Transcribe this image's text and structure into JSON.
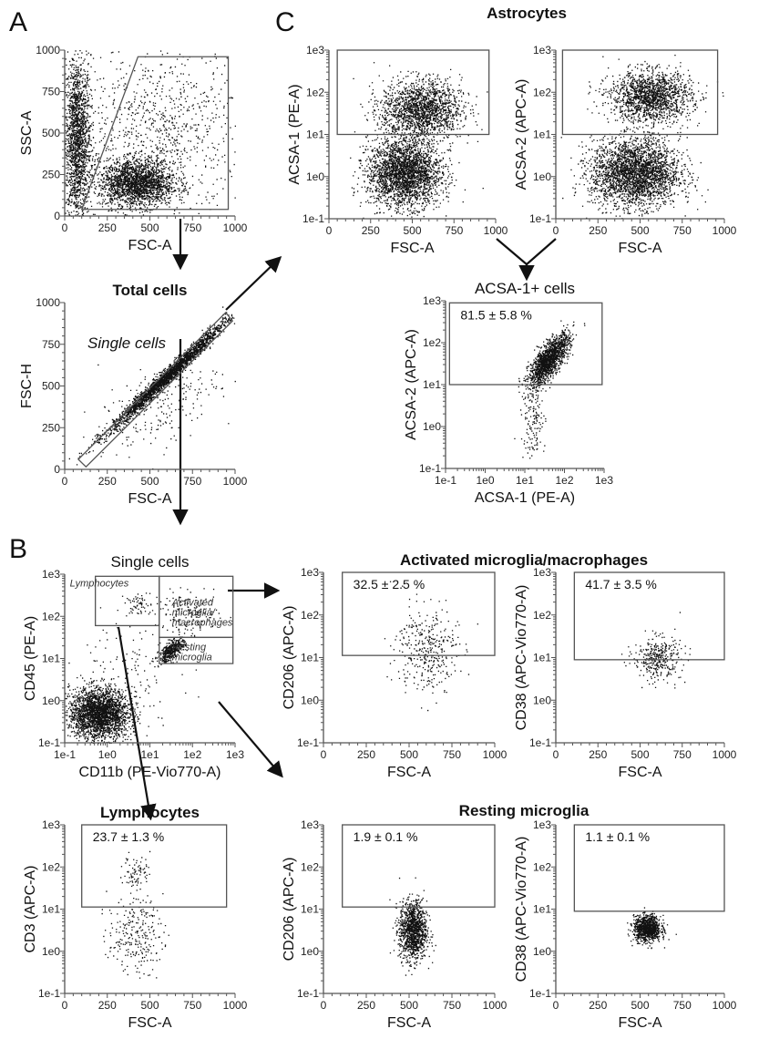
{
  "panel_letters": [
    "A",
    "B",
    "C"
  ],
  "group_titles": {
    "astrocytes": "Astrocytes",
    "activated": "Activated microglia/macrophages",
    "resting": "Resting microglia"
  },
  "chart_data": [
    {
      "id": "A1",
      "type": "scatter",
      "title": "",
      "xlabel": "FSC-A",
      "ylabel": "SSC-A",
      "xscale": "linear",
      "yscale": "linear",
      "xlim": [
        0,
        1000
      ],
      "ylim": [
        0,
        1000
      ],
      "xticks": [
        "0",
        "250",
        "500",
        "750",
        "1000"
      ],
      "yticks": [
        "0",
        "250",
        "500",
        "750",
        "1000"
      ],
      "gates": [
        {
          "type": "polygon",
          "points": [
            [
              100,
              40
            ],
            [
              430,
              960
            ],
            [
              960,
              960
            ],
            [
              960,
              40
            ]
          ]
        }
      ],
      "clusters": [
        {
          "mx": 70,
          "sx": 40,
          "my": 450,
          "sy": 260,
          "n": 1800
        },
        {
          "mx": 420,
          "sx": 110,
          "my": 200,
          "sy": 70,
          "n": 2000
        },
        {
          "mx": 550,
          "sx": 250,
          "my": 520,
          "sy": 250,
          "n": 900
        }
      ]
    },
    {
      "id": "A2",
      "type": "scatter",
      "title": "Total cells",
      "title_bold": true,
      "xlabel": "FSC-A",
      "ylabel": "FSC-H",
      "xscale": "linear",
      "yscale": "linear",
      "xlim": [
        0,
        1000
      ],
      "ylim": [
        0,
        1000
      ],
      "xticks": [
        "0",
        "250",
        "500",
        "750",
        "1000"
      ],
      "yticks": [
        "0",
        "250",
        "500",
        "750",
        "1000"
      ],
      "annotation": "Single cells",
      "gates": [
        {
          "type": "polygon",
          "points": [
            [
              80,
              60
            ],
            [
              125,
              15
            ],
            [
              985,
              890
            ],
            [
              945,
              940
            ]
          ]
        }
      ],
      "clusters": [
        {
          "mx": 600,
          "sx": 170,
          "my": 560,
          "sy": 25,
          "slope": 0.95,
          "n": 2500
        },
        {
          "mx": 550,
          "sx": 180,
          "my": 380,
          "sy": 120,
          "slope": 0.5,
          "n": 220
        }
      ]
    },
    {
      "id": "B1",
      "type": "scatter",
      "title": "Single cells",
      "xlabel": "CD11b (PE-Vio770-A)",
      "ylabel": "CD45 (PE-A)",
      "xscale": "log",
      "yscale": "log",
      "xlim": [
        -1,
        3
      ],
      "ylim": [
        -1,
        3
      ],
      "xticks": [
        "1e-1",
        "1e0",
        "1e1",
        "1e2",
        "1e3"
      ],
      "yticks": [
        "1e-1",
        "1e0",
        "1e1",
        "1e2",
        "1e3"
      ],
      "gates": [
        {
          "type": "rect",
          "x": [
            -0.28,
            1.22
          ],
          "y": [
            1.78,
            2.95
          ],
          "label": "Lymphocytes"
        },
        {
          "type": "rect",
          "x": [
            1.22,
            2.95
          ],
          "y": [
            1.5,
            2.95
          ],
          "label": "Activated microglia/ macrophages"
        },
        {
          "type": "rect",
          "x": [
            1.22,
            2.95
          ],
          "y": [
            0.88,
            1.5
          ],
          "label": "Resting microglia"
        }
      ],
      "clusters": [
        {
          "mx": -0.2,
          "sx": 0.35,
          "my": -0.3,
          "sy": 0.3,
          "n": 2500
        },
        {
          "mx": 1.5,
          "sx": 0.15,
          "my": 1.2,
          "sy": 0.1,
          "slope": 0.6,
          "n": 420
        },
        {
          "mx": 1.9,
          "sx": 0.4,
          "my": 2.05,
          "sy": 0.25,
          "n": 160
        },
        {
          "mx": 0.7,
          "sx": 0.15,
          "my": 2.3,
          "sy": 0.15,
          "n": 60
        },
        {
          "mx": 0.5,
          "sx": 0.6,
          "my": 0.8,
          "sy": 0.6,
          "n": 120
        }
      ]
    },
    {
      "id": "C1",
      "type": "scatter",
      "title": "",
      "xlabel": "FSC-A",
      "ylabel": "ACSA-1 (PE-A)",
      "xscale": "linear",
      "yscale": "log",
      "xlim": [
        0,
        1000
      ],
      "ylim": [
        -1,
        3
      ],
      "xticks": [
        "0",
        "250",
        "500",
        "750",
        "1000"
      ],
      "yticks": [
        "1e-1",
        "1e0",
        "1e1",
        "1e2",
        "1e3"
      ],
      "gates": [
        {
          "type": "rect",
          "x": [
            50,
            960
          ],
          "y": [
            1,
            3
          ]
        }
      ],
      "clusters": [
        {
          "mx": 550,
          "sx": 120,
          "my": 1.6,
          "sy": 0.35,
          "n": 1700
        },
        {
          "mx": 450,
          "sx": 110,
          "my": 0.1,
          "sy": 0.4,
          "n": 2600
        }
      ]
    },
    {
      "id": "C2",
      "type": "scatter",
      "title": "",
      "xlabel": "FSC-A",
      "ylabel": "ACSA-2 (APC-A)",
      "xscale": "linear",
      "yscale": "log",
      "xlim": [
        0,
        1000
      ],
      "ylim": [
        -1,
        3
      ],
      "xticks": [
        "0",
        "250",
        "500",
        "750",
        "1000"
      ],
      "yticks": [
        "1e-1",
        "1e0",
        "1e1",
        "1e2",
        "1e3"
      ],
      "gates": [
        {
          "type": "rect",
          "x": [
            40,
            960
          ],
          "y": [
            1,
            3
          ]
        }
      ],
      "clusters": [
        {
          "mx": 560,
          "sx": 120,
          "my": 1.9,
          "sy": 0.3,
          "n": 1600
        },
        {
          "mx": 470,
          "sx": 130,
          "my": 0.1,
          "sy": 0.4,
          "n": 2800
        }
      ]
    },
    {
      "id": "C3",
      "type": "scatter",
      "title": "ACSA-1+ cells",
      "xlabel": "ACSA-1 (PE-A)",
      "ylabel": "ACSA-2 (APC-A)",
      "xscale": "log",
      "yscale": "log",
      "xlim": [
        -1,
        3
      ],
      "ylim": [
        -1,
        3
      ],
      "xticks": [
        "1e-1",
        "1e0",
        "1e1",
        "1e2",
        "1e3"
      ],
      "yticks": [
        "1e-1",
        "1e0",
        "1e1",
        "1e2",
        "1e3"
      ],
      "annotation": "81.5 ± 5.8 %",
      "gates": [
        {
          "type": "rect",
          "x": [
            -0.9,
            2.95
          ],
          "y": [
            1,
            2.95
          ]
        }
      ],
      "clusters": [
        {
          "mx": 1.6,
          "sx": 0.25,
          "my": 1.6,
          "sy": 0.2,
          "slope": 0.9,
          "n": 1500
        },
        {
          "mx": 1.2,
          "sx": 0.15,
          "my": 0.2,
          "sy": 0.5,
          "n": 150
        }
      ]
    },
    {
      "id": "B2",
      "type": "scatter",
      "title": "",
      "xlabel": "FSC-A",
      "ylabel": "CD206 (APC-A)",
      "xscale": "linear",
      "yscale": "log",
      "xlim": [
        0,
        1000
      ],
      "ylim": [
        -1,
        3
      ],
      "xticks": [
        "0",
        "250",
        "500",
        "750",
        "1000"
      ],
      "yticks": [
        "1e-1",
        "1e0",
        "1e1",
        "1e2",
        "1e3"
      ],
      "annotation": "32.5 ± 2.5 %",
      "gates": [
        {
          "type": "rect",
          "x": [
            110,
            1000
          ],
          "y": [
            1.05,
            3
          ]
        }
      ],
      "clusters": [
        {
          "mx": 600,
          "sx": 90,
          "my": 1.2,
          "sy": 0.5,
          "n": 350
        }
      ]
    },
    {
      "id": "B3",
      "type": "scatter",
      "title": "",
      "xlabel": "FSC-A",
      "ylabel": "CD38 (APC-Vio770-A)",
      "xscale": "linear",
      "yscale": "log",
      "xlim": [
        0,
        1000
      ],
      "ylim": [
        -1,
        3
      ],
      "xticks": [
        "0",
        "250",
        "500",
        "750",
        "1000"
      ],
      "yticks": [
        "1e-1",
        "1e0",
        "1e1",
        "1e2",
        "1e3"
      ],
      "annotation": "41.7 ± 3.5 %",
      "gates": [
        {
          "type": "rect",
          "x": [
            110,
            1000
          ],
          "y": [
            0.95,
            3
          ]
        }
      ],
      "clusters": [
        {
          "mx": 600,
          "sx": 70,
          "my": 1.0,
          "sy": 0.25,
          "n": 350
        }
      ]
    },
    {
      "id": "B4",
      "type": "scatter",
      "title": "Lymphocytes",
      "title_bold": true,
      "xlabel": "FSC-A",
      "ylabel": "CD3 (APC-A)",
      "xscale": "linear",
      "yscale": "log",
      "xlim": [
        0,
        1000
      ],
      "ylim": [
        -1,
        3
      ],
      "xticks": [
        "0",
        "250",
        "500",
        "750",
        "1000"
      ],
      "yticks": [
        "1e-1",
        "1e0",
        "1e1",
        "1e2",
        "1e3"
      ],
      "annotation": "23.7 ± 1.3 %",
      "gates": [
        {
          "type": "rect",
          "x": [
            100,
            950
          ],
          "y": [
            1.05,
            3
          ]
        }
      ],
      "clusters": [
        {
          "mx": 410,
          "sx": 80,
          "my": 0.4,
          "sy": 0.45,
          "n": 250
        },
        {
          "mx": 420,
          "sx": 40,
          "my": 1.9,
          "sy": 0.2,
          "n": 80
        }
      ]
    },
    {
      "id": "B5",
      "type": "scatter",
      "title": "",
      "xlabel": "FSC-A",
      "ylabel": "CD206 (APC-A)",
      "xscale": "linear",
      "yscale": "log",
      "xlim": [
        0,
        1000
      ],
      "ylim": [
        -1,
        3
      ],
      "xticks": [
        "0",
        "250",
        "500",
        "750",
        "1000"
      ],
      "yticks": [
        "1e-1",
        "1e0",
        "1e1",
        "1e2",
        "1e3"
      ],
      "annotation": "1.9 ± 0.1 %",
      "gates": [
        {
          "type": "rect",
          "x": [
            110,
            1000
          ],
          "y": [
            1.05,
            3
          ]
        }
      ],
      "clusters": [
        {
          "mx": 520,
          "sx": 40,
          "my": 0.5,
          "sy": 0.35,
          "n": 1200
        }
      ]
    },
    {
      "id": "B6",
      "type": "scatter",
      "title": "",
      "xlabel": "FSC-A",
      "ylabel": "CD38 (APC-Vio770-A)",
      "xscale": "linear",
      "yscale": "log",
      "xlim": [
        0,
        1000
      ],
      "ylim": [
        -1,
        3
      ],
      "xticks": [
        "0",
        "250",
        "500",
        "750",
        "1000"
      ],
      "yticks": [
        "1e-1",
        "1e0",
        "1e1",
        "1e2",
        "1e3"
      ],
      "annotation": "1.1 ± 0.1 %",
      "gates": [
        {
          "type": "rect",
          "x": [
            110,
            1000
          ],
          "y": [
            0.95,
            3
          ]
        }
      ],
      "clusters": [
        {
          "mx": 540,
          "sx": 40,
          "my": 0.55,
          "sy": 0.15,
          "n": 1000
        }
      ]
    }
  ]
}
